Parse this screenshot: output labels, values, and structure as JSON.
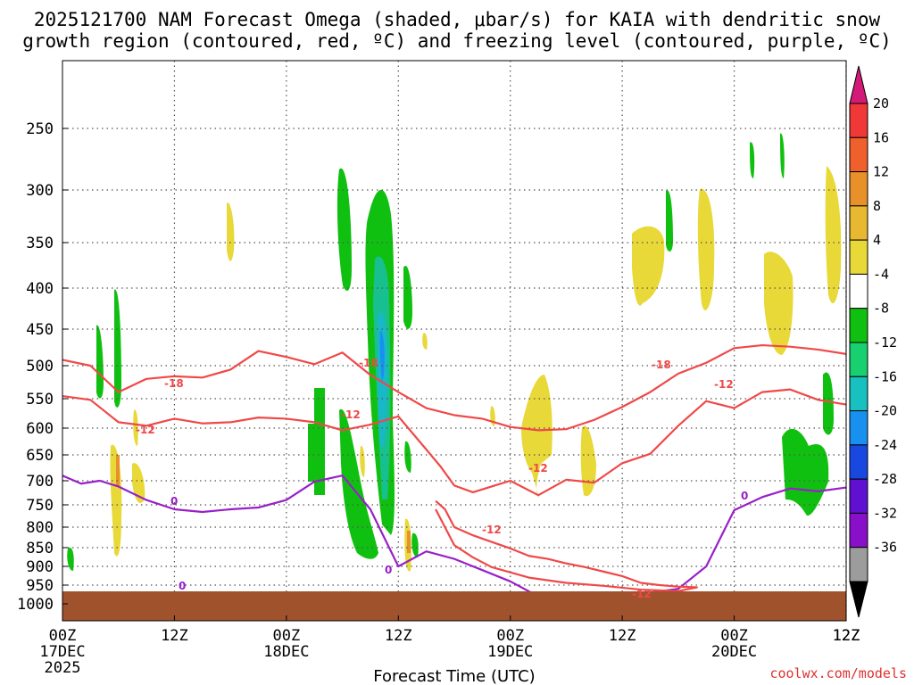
{
  "chart_data": {
    "type": "heatmap",
    "title_line1": "2025121700 NAM Forecast Omega (shaded, μbar/s) for KAIA with dendritic snow",
    "title_line2": "growth region (contoured, red, ºC) and freezing level (contoured, purple, ºC)",
    "xlabel": "Forecast Time (UTC)",
    "ylabel": "",
    "x_ticks": [
      {
        "top": "00Z",
        "bottom": "17DEC",
        "extra": "2025"
      },
      {
        "top": "12Z",
        "bottom": ""
      },
      {
        "top": "00Z",
        "bottom": "18DEC"
      },
      {
        "top": "12Z",
        "bottom": ""
      },
      {
        "top": "00Z",
        "bottom": "19DEC"
      },
      {
        "top": "12Z",
        "bottom": ""
      },
      {
        "top": "00Z",
        "bottom": "20DEC"
      },
      {
        "top": "12Z",
        "bottom": ""
      }
    ],
    "xlim_hours": [
      0,
      84
    ],
    "y_ticks": [
      "250",
      "300",
      "350",
      "400",
      "450",
      "500",
      "550",
      "600",
      "650",
      "700",
      "750",
      "800",
      "850",
      "900",
      "950",
      "1000"
    ],
    "ylim_hPa": [
      200,
      1040
    ],
    "ground_level_hPa": 970,
    "colorbar_labels": [
      "20",
      "16",
      "12",
      "8",
      "4",
      "-4",
      "-8",
      "-12",
      "-16",
      "-20",
      "-24",
      "-28",
      "-32",
      "-36"
    ],
    "colorbar_colors": [
      "#d41a78",
      "#f03838",
      "#f0602c",
      "#e8902a",
      "#e8b830",
      "#e8d838",
      "#ffffff",
      "#10c010",
      "#18d070",
      "#18c0c0",
      "#1890f0",
      "#1848e0",
      "#6010d0",
      "#8810c8",
      "#9c9c9c",
      "#000000"
    ],
    "contour_labels": {
      "minus18": "-18",
      "minus12": "-12",
      "zero": "0"
    },
    "series": [
      {
        "name": "-18C isotherm",
        "color": "#f04848",
        "hours": [
          0,
          3,
          6,
          9,
          12,
          15,
          18,
          21,
          24,
          27,
          30,
          33,
          36,
          39,
          42,
          45,
          48,
          51,
          54,
          57,
          60,
          63,
          66,
          69,
          72,
          75,
          78,
          81,
          84
        ],
        "pressure": [
          492,
          500,
          540,
          520,
          516,
          518,
          506,
          480,
          488,
          498,
          482,
          514,
          540,
          566,
          578,
          584,
          598,
          604,
          602,
          586,
          564,
          540,
          512,
          496,
          476,
          472,
          474,
          478,
          484
        ]
      },
      {
        "name": "-12C isotherm",
        "color": "#f04848",
        "hours": [
          0,
          3,
          6,
          9,
          12,
          15,
          18,
          21,
          24,
          27,
          30,
          33,
          36,
          39,
          40.5,
          42,
          44,
          46,
          48,
          51,
          54,
          57,
          60,
          63,
          66,
          69,
          72,
          75,
          78,
          81,
          84
        ],
        "pressure": [
          546,
          552,
          590,
          596,
          584,
          592,
          590,
          582,
          584,
          590,
          604,
          594,
          580,
          640,
          672,
          710,
          724,
          712,
          700,
          730,
          698,
          704,
          666,
          648,
          596,
          554,
          566,
          540,
          536,
          552,
          560
        ]
      },
      {
        "name": "0C isotherm",
        "color": "#9820c8",
        "hours": [
          0,
          2,
          4,
          6,
          9,
          12,
          15,
          18,
          21,
          24,
          27,
          30,
          33,
          36,
          39,
          42,
          45,
          48,
          51,
          54,
          57,
          60,
          63,
          66,
          69,
          72,
          75,
          78,
          81,
          84
        ],
        "pressure": [
          690,
          706,
          700,
          712,
          740,
          760,
          766,
          760,
          756,
          740,
          702,
          690,
          760,
          900,
          860,
          880,
          910,
          940,
          980,
          990,
          985,
          980,
          970,
          960,
          900,
          762,
          734,
          716,
          722,
          714
        ]
      },
      {
        "name": "-12C lower contour",
        "color": "#f04848",
        "hours": [
          40,
          41,
          42,
          44,
          46,
          48,
          50,
          52,
          54,
          56,
          58,
          60,
          62,
          64,
          66,
          68,
          66,
          62,
          58,
          54,
          50,
          46,
          44,
          42,
          40
        ],
        "pressure": [
          742,
          760,
          800,
          820,
          836,
          852,
          872,
          880,
          892,
          902,
          914,
          926,
          944,
          950,
          954,
          956,
          966,
          962,
          952,
          944,
          930,
          902,
          876,
          844,
          760
        ]
      }
    ],
    "omega_regions": [
      {
        "name": "ascent core",
        "value": -12,
        "hours_center": 27,
        "p_center": 490
      },
      {
        "name": "ascent column",
        "value": -8,
        "hours_center": 27,
        "p_center": 560
      },
      {
        "name": "ascent lower",
        "value": -8,
        "hours_center": 25.5,
        "p_center": 780
      },
      {
        "name": "descent",
        "value": 4,
        "hours_center": 40,
        "p_center": 620
      }
    ]
  },
  "credit": "coolwx.com/models"
}
